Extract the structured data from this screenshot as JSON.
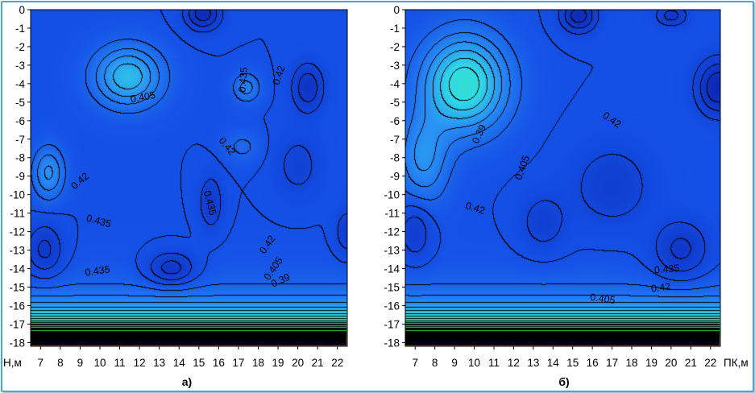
{
  "chart_data": [
    {
      "type": "heatmap",
      "panel_label": "а)",
      "x_ticks": [
        "7",
        "8",
        "9",
        "10",
        "11",
        "12",
        "13",
        "14",
        "15",
        "16",
        "17",
        "18",
        "19",
        "20",
        "21",
        "22"
      ],
      "y_ticks": [
        "0",
        "-1",
        "-2",
        "-3",
        "-4",
        "-5",
        "-6",
        "-7",
        "-8",
        "-9",
        "-10",
        "-11",
        "-12",
        "-13",
        "-14",
        "-15",
        "-16",
        "-17",
        "-18"
      ],
      "xlim": [
        6.5,
        22.5
      ],
      "ylim": [
        -18.2,
        0
      ],
      "y_axis_unit": "Н,м",
      "contour_labels": [
        {
          "text": "0.435",
          "x": 17.4,
          "y": -3.8,
          "angle": -85
        },
        {
          "text": "0.42",
          "x": 19.2,
          "y": -3.6,
          "angle": -72
        },
        {
          "text": "0.405",
          "x": 12.2,
          "y": -4.9,
          "angle": -10
        },
        {
          "text": "0.42",
          "x": 16.3,
          "y": -7.5,
          "angle": 50
        },
        {
          "text": "0.42",
          "x": 9.1,
          "y": -9.4,
          "angle": -40
        },
        {
          "text": "0.435",
          "x": 15.4,
          "y": -10.5,
          "angle": 75
        },
        {
          "text": "0.435",
          "x": 9.9,
          "y": -11.6,
          "angle": 15
        },
        {
          "text": "0.42",
          "x": 18.6,
          "y": -12.8,
          "angle": -55
        },
        {
          "text": "0.435",
          "x": 9.9,
          "y": -14.3,
          "angle": -8
        },
        {
          "text": "0.405",
          "x": 18.9,
          "y": -14.1,
          "angle": -55
        },
        {
          "text": "0.39",
          "x": 19.2,
          "y": -14.8,
          "angle": -25
        }
      ]
    },
    {
      "type": "heatmap",
      "panel_label": "б)",
      "x_ticks": [
        "7",
        "8",
        "9",
        "10",
        "11",
        "12",
        "13",
        "14",
        "15",
        "16",
        "17",
        "18",
        "19",
        "20",
        "21",
        "22"
      ],
      "y_ticks": [
        "0",
        "-1",
        "-2",
        "-3",
        "-4",
        "-5",
        "-6",
        "-7",
        "-8",
        "-9",
        "-10",
        "-11",
        "-12",
        "-13",
        "-14",
        "-15",
        "-16",
        "-17",
        "-18"
      ],
      "xlim": [
        6.5,
        22.5
      ],
      "ylim": [
        -18.2,
        0
      ],
      "x_axis_unit": "ПК,м",
      "contour_labels": [
        {
          "text": "0.39",
          "x": 10.4,
          "y": -6.8,
          "angle": -65
        },
        {
          "text": "0.42",
          "x": 16.9,
          "y": -6.1,
          "angle": 35
        },
        {
          "text": "0.405",
          "x": 12.6,
          "y": -8.6,
          "angle": -70
        },
        {
          "text": "0.42",
          "x": 10.0,
          "y": -10.9,
          "angle": 18
        },
        {
          "text": "0.435",
          "x": 19.8,
          "y": -14.2,
          "angle": -5
        },
        {
          "text": "0.42",
          "x": 19.5,
          "y": -15.2,
          "angle": -8
        },
        {
          "text": "0.405",
          "x": 16.5,
          "y": -15.8,
          "angle": 8
        }
      ]
    }
  ]
}
